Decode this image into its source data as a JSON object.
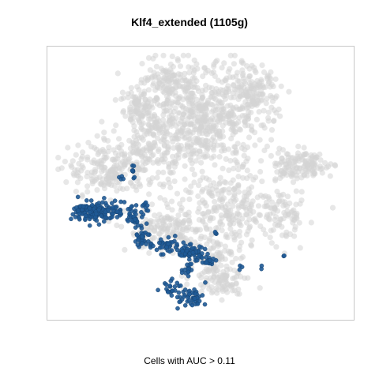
{
  "title": "Klf4_extended (1105g)",
  "caption": "Cells with AUC > 0.11",
  "colors": {
    "background_cells": "#d3d3d3",
    "highlighted_cells": "#1f5a96",
    "frame": "#c8c8c8"
  },
  "chart_data": {
    "type": "scatter",
    "title": "Klf4_extended (1105g)",
    "xlabel": "Cells with AUC > 0.11",
    "ylabel": "",
    "grid": false,
    "legend": "none",
    "series": [
      {
        "role": "background",
        "color": "#d3d3d3",
        "clusters": [
          {
            "cx": 0.5,
            "cy": 0.75,
            "rx": 0.19,
            "ry": 0.19,
            "n": 650
          },
          {
            "cx": 0.68,
            "cy": 0.84,
            "rx": 0.07,
            "ry": 0.09,
            "n": 120
          },
          {
            "cx": 0.3,
            "cy": 0.79,
            "rx": 0.07,
            "ry": 0.07,
            "n": 90
          },
          {
            "cx": 0.38,
            "cy": 0.9,
            "rx": 0.07,
            "ry": 0.05,
            "n": 70
          },
          {
            "cx": 0.18,
            "cy": 0.55,
            "rx": 0.12,
            "ry": 0.1,
            "n": 180
          },
          {
            "cx": 0.32,
            "cy": 0.62,
            "rx": 0.1,
            "ry": 0.12,
            "n": 140
          },
          {
            "cx": 0.38,
            "cy": 0.32,
            "rx": 0.12,
            "ry": 0.08,
            "n": 150
          },
          {
            "cx": 0.62,
            "cy": 0.4,
            "rx": 0.17,
            "ry": 0.13,
            "n": 260
          },
          {
            "cx": 0.8,
            "cy": 0.36,
            "rx": 0.06,
            "ry": 0.08,
            "n": 50
          },
          {
            "cx": 0.86,
            "cy": 0.57,
            "rx": 0.09,
            "ry": 0.05,
            "n": 110
          },
          {
            "cx": 0.78,
            "cy": 0.56,
            "rx": 0.03,
            "ry": 0.04,
            "n": 25
          },
          {
            "cx": 0.57,
            "cy": 0.13,
            "rx": 0.09,
            "ry": 0.05,
            "n": 90
          },
          {
            "cx": 0.53,
            "cy": 0.22,
            "rx": 0.08,
            "ry": 0.06,
            "n": 70
          }
        ]
      },
      {
        "role": "highlighted",
        "color": "#1f5a96",
        "clusters": [
          {
            "cx": 0.13,
            "cy": 0.39,
            "rx": 0.06,
            "ry": 0.035,
            "n": 140
          },
          {
            "cx": 0.22,
            "cy": 0.39,
            "rx": 0.04,
            "ry": 0.03,
            "n": 40
          },
          {
            "cx": 0.28,
            "cy": 0.37,
            "rx": 0.03,
            "ry": 0.04,
            "n": 30
          },
          {
            "cx": 0.3,
            "cy": 0.29,
            "rx": 0.025,
            "ry": 0.03,
            "n": 30
          },
          {
            "cx": 0.38,
            "cy": 0.26,
            "rx": 0.04,
            "ry": 0.025,
            "n": 40
          },
          {
            "cx": 0.46,
            "cy": 0.235,
            "rx": 0.05,
            "ry": 0.025,
            "n": 60
          },
          {
            "cx": 0.53,
            "cy": 0.2,
            "rx": 0.025,
            "ry": 0.02,
            "n": 20
          },
          {
            "cx": 0.455,
            "cy": 0.17,
            "rx": 0.02,
            "ry": 0.03,
            "n": 15
          },
          {
            "cx": 0.45,
            "cy": 0.055,
            "rx": 0.035,
            "ry": 0.04,
            "n": 25
          },
          {
            "cx": 0.49,
            "cy": 0.06,
            "rx": 0.025,
            "ry": 0.025,
            "n": 18
          },
          {
            "cx": 0.405,
            "cy": 0.1,
            "rx": 0.035,
            "ry": 0.025,
            "n": 22
          },
          {
            "cx": 0.265,
            "cy": 0.56,
            "rx": 0.006,
            "ry": 0.03,
            "n": 8
          },
          {
            "cx": 0.23,
            "cy": 0.52,
            "rx": 0.01,
            "ry": 0.01,
            "n": 4
          },
          {
            "cx": 0.31,
            "cy": 0.42,
            "rx": 0.01,
            "ry": 0.01,
            "n": 4
          },
          {
            "cx": 0.64,
            "cy": 0.18,
            "rx": 0.008,
            "ry": 0.008,
            "n": 3
          },
          {
            "cx": 0.55,
            "cy": 0.31,
            "rx": 0.008,
            "ry": 0.008,
            "n": 3
          },
          {
            "cx": 0.71,
            "cy": 0.18,
            "rx": 0.006,
            "ry": 0.006,
            "n": 2
          },
          {
            "cx": 0.79,
            "cy": 0.22,
            "rx": 0.006,
            "ry": 0.006,
            "n": 2
          }
        ]
      }
    ]
  }
}
